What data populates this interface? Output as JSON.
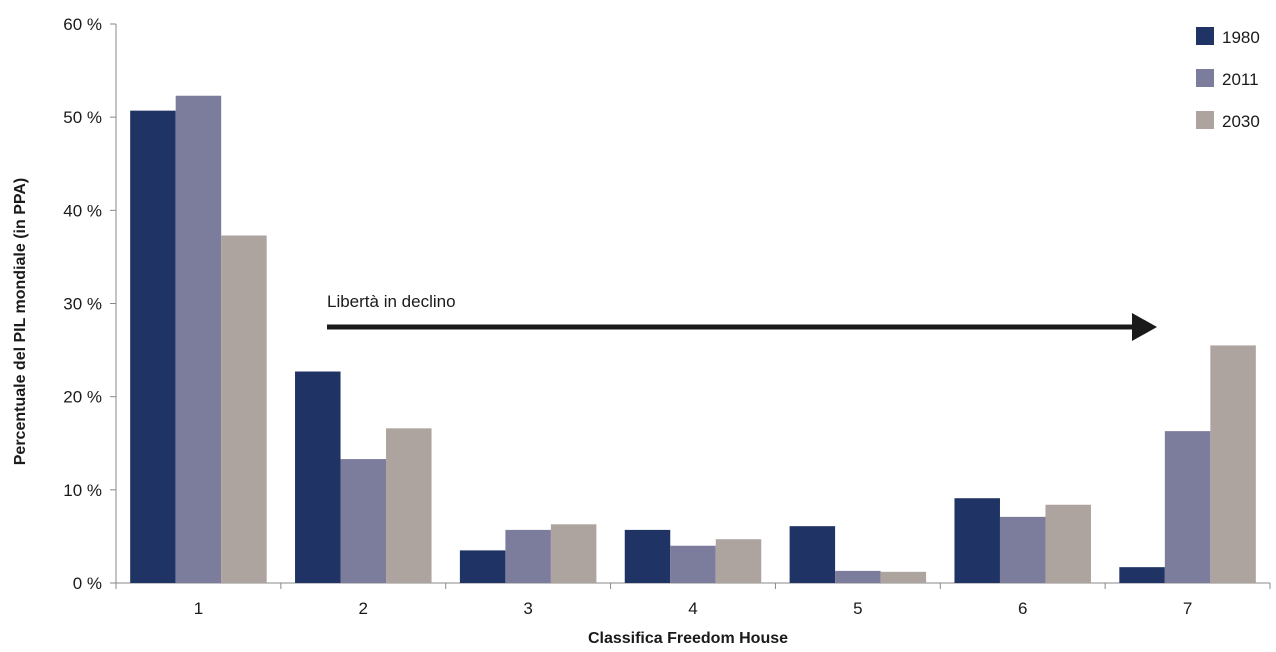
{
  "chart_data": {
    "type": "bar",
    "categories": [
      "1",
      "2",
      "3",
      "4",
      "5",
      "6",
      "7"
    ],
    "series": [
      {
        "name": "1980",
        "color": "#1f3364",
        "values": [
          50.7,
          22.7,
          3.5,
          5.7,
          6.1,
          9.1,
          1.7
        ]
      },
      {
        "name": "2011",
        "color": "#7c7d9d",
        "values": [
          52.3,
          13.3,
          5.7,
          4.0,
          1.3,
          7.1,
          16.3
        ]
      },
      {
        "name": "2030",
        "color": "#ada39f",
        "values": [
          37.3,
          16.6,
          6.3,
          4.7,
          1.2,
          8.4,
          25.5
        ]
      }
    ],
    "xlabel": "Classifica Freedom House",
    "ylabel": "Percentuale del PIL mondiale (in PPA)",
    "ylim": [
      0,
      60
    ],
    "yticks": [
      "0 %",
      "10 %",
      "20 %",
      "30 %",
      "40 %",
      "50 %",
      "60 %"
    ],
    "legend_position": "top-right",
    "grid": false,
    "annotation": {
      "text": "Libertà in declino"
    }
  }
}
